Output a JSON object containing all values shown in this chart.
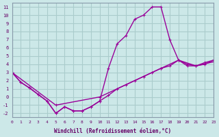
{
  "xlabel": "Windchill (Refroidissement éolien,°C)",
  "background_color": "#cce8e8",
  "grid_color": "#aacccc",
  "line_color": "#990099",
  "xlim": [
    0,
    23
  ],
  "ylim": [
    -2.5,
    11.5
  ],
  "yticks": [
    -2,
    -1,
    0,
    1,
    2,
    3,
    4,
    5,
    6,
    7,
    8,
    9,
    10,
    11
  ],
  "xticks": [
    0,
    1,
    2,
    3,
    4,
    5,
    6,
    7,
    8,
    9,
    10,
    11,
    12,
    13,
    14,
    15,
    16,
    17,
    18,
    19,
    20,
    21,
    22,
    23
  ],
  "line1_x": [
    0,
    1,
    2,
    3,
    4,
    5,
    6,
    7,
    8,
    9,
    10,
    11,
    12,
    13,
    14,
    15,
    16,
    17,
    18,
    19,
    20,
    21,
    22,
    23
  ],
  "line1_y": [
    3.0,
    1.8,
    1.1,
    0.3,
    -0.5,
    -2.0,
    -1.2,
    -1.7,
    -1.7,
    -1.2,
    -0.5,
    3.5,
    6.5,
    7.5,
    9.5,
    10.0,
    11.0,
    11.0,
    7.0,
    4.5,
    4.0,
    3.8,
    4.2,
    4.5
  ],
  "line2_x": [
    0,
    1,
    2,
    3,
    4,
    5,
    6,
    7,
    8,
    9,
    10,
    11,
    12,
    13,
    14,
    15,
    16,
    17,
    18,
    19,
    20,
    21,
    22,
    23
  ],
  "line2_y": [
    3.0,
    1.8,
    1.1,
    0.3,
    -0.5,
    -2.0,
    -1.2,
    -1.7,
    -1.7,
    -1.2,
    -0.5,
    0.2,
    1.0,
    1.5,
    2.0,
    2.5,
    3.0,
    3.5,
    3.8,
    4.5,
    3.8,
    3.8,
    4.0,
    4.5
  ],
  "line3_x": [
    0,
    5,
    10,
    15,
    17,
    19,
    21,
    23
  ],
  "line3_y": [
    3.0,
    -1.0,
    0.0,
    2.5,
    3.5,
    4.5,
    3.8,
    4.3
  ]
}
